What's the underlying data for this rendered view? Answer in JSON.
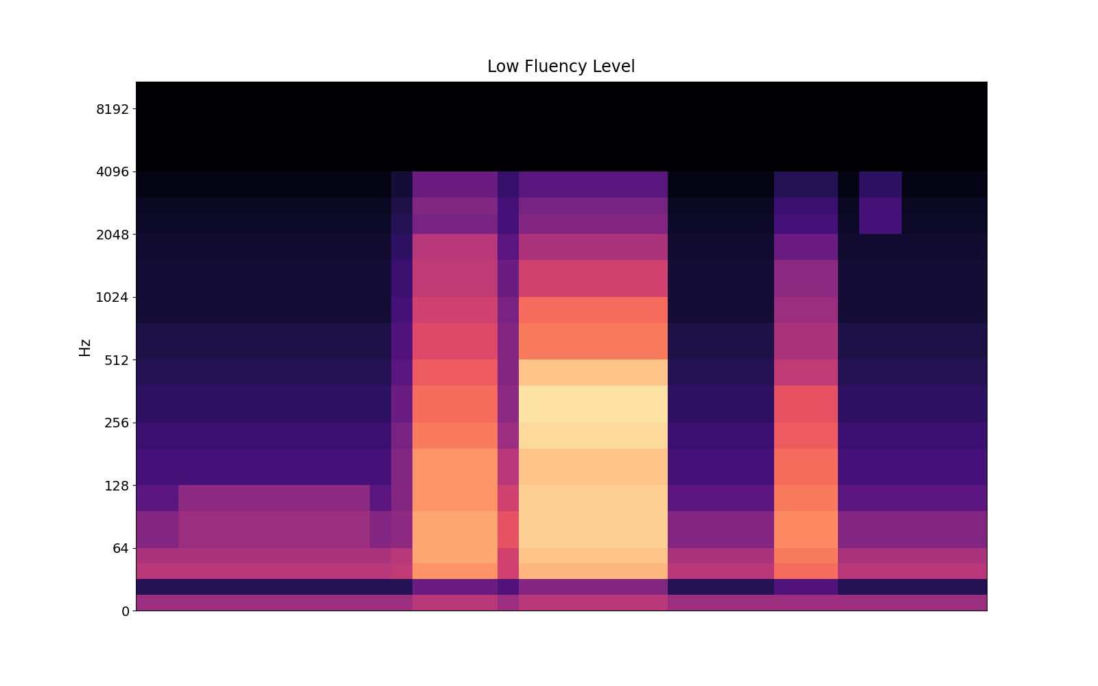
{
  "chart_data": {
    "type": "heatmap",
    "title": "Low Fluency Level",
    "y_label": "Hz",
    "log": "y",
    "tick_labels": "y",
    "ylim": [
      0,
      11025
    ],
    "yticks": [
      0,
      64,
      128,
      256,
      512,
      1024,
      2048,
      4096,
      8192
    ],
    "freq_edges": [
      0,
      16,
      32,
      48,
      64,
      96,
      128,
      192,
      256,
      384,
      512,
      768,
      1024,
      1536,
      2048,
      2560,
      3072,
      4096,
      6144,
      8192,
      11025
    ],
    "color_range": [
      -80,
      0
    ],
    "cells": [
      [
        -45,
        -45,
        -45,
        -45,
        -45,
        -45,
        -45,
        -45,
        -45,
        -45,
        -45,
        -45,
        -45,
        -40,
        -40,
        -40,
        -40,
        -45,
        -40,
        -40,
        -40,
        -40,
        -40,
        -40,
        -40,
        -45,
        -45,
        -45,
        -45,
        -45,
        -45,
        -45,
        -45,
        -45,
        -45,
        -45,
        -45,
        -45,
        -45,
        -45
      ],
      [
        -68,
        -68,
        -68,
        -68,
        -68,
        -68,
        -68,
        -68,
        -68,
        -68,
        -68,
        -68,
        -68,
        -55,
        -55,
        -55,
        -55,
        -60,
        -50,
        -50,
        -50,
        -50,
        -50,
        -50,
        -50,
        -68,
        -68,
        -68,
        -68,
        -68,
        -60,
        -60,
        -60,
        -68,
        -68,
        -68,
        -68,
        -68,
        -68,
        -68
      ],
      [
        -40,
        -40,
        -40,
        -40,
        -40,
        -40,
        -40,
        -40,
        -40,
        -40,
        -40,
        -40,
        -38,
        -18,
        -18,
        -18,
        -18,
        -35,
        -12,
        -12,
        -12,
        -12,
        -12,
        -12,
        -12,
        -40,
        -40,
        -40,
        -40,
        -40,
        -25,
        -25,
        -25,
        -40,
        -40,
        -40,
        -40,
        -40,
        -40,
        -40
      ],
      [
        -42,
        -42,
        -42,
        -42,
        -42,
        -42,
        -42,
        -42,
        -42,
        -42,
        -42,
        -42,
        -40,
        -15,
        -15,
        -15,
        -15,
        -35,
        -10,
        -10,
        -10,
        -10,
        -10,
        -10,
        -10,
        -42,
        -42,
        -42,
        -42,
        -42,
        -22,
        -22,
        -22,
        -42,
        -42,
        -42,
        -42,
        -42,
        -42,
        -42
      ],
      [
        -50,
        -50,
        -45,
        -45,
        -45,
        -45,
        -45,
        -45,
        -45,
        -45,
        -45,
        -50,
        -48,
        -15,
        -15,
        -15,
        -15,
        -30,
        -8,
        -8,
        -8,
        -8,
        -8,
        -8,
        -8,
        -50,
        -50,
        -50,
        -50,
        -50,
        -20,
        -20,
        -20,
        -50,
        -50,
        -50,
        -50,
        -50,
        -50,
        -50
      ],
      [
        -58,
        -58,
        -48,
        -48,
        -48,
        -48,
        -48,
        -48,
        -48,
        -48,
        -48,
        -58,
        -50,
        -18,
        -18,
        -18,
        -18,
        -35,
        -8,
        -8,
        -8,
        -8,
        -8,
        -8,
        -8,
        -58,
        -58,
        -58,
        -58,
        -58,
        -22,
        -22,
        -22,
        -58,
        -58,
        -58,
        -58,
        -58,
        -58,
        -58
      ],
      [
        -62,
        -62,
        -62,
        -62,
        -62,
        -62,
        -62,
        -62,
        -62,
        -62,
        -62,
        -62,
        -50,
        -18,
        -18,
        -18,
        -18,
        -40,
        -10,
        -10,
        -10,
        -10,
        -10,
        -10,
        -10,
        -62,
        -62,
        -62,
        -62,
        -62,
        -25,
        -25,
        -25,
        -62,
        -62,
        -62,
        -62,
        -62,
        -62,
        -62
      ],
      [
        -64,
        -64,
        -64,
        -64,
        -64,
        -64,
        -64,
        -64,
        -64,
        -64,
        -64,
        -64,
        -52,
        -22,
        -22,
        -22,
        -22,
        -45,
        -6,
        -6,
        -6,
        -6,
        -6,
        -6,
        -6,
        -64,
        -64,
        -64,
        -64,
        -64,
        -28,
        -28,
        -28,
        -64,
        -64,
        -64,
        -64,
        -64,
        -64,
        -64
      ],
      [
        -66,
        -66,
        -66,
        -66,
        -66,
        -66,
        -66,
        -66,
        -66,
        -66,
        -66,
        -66,
        -55,
        -25,
        -25,
        -25,
        -25,
        -48,
        -5,
        -5,
        -5,
        -5,
        -5,
        -5,
        -5,
        -66,
        -66,
        -66,
        -66,
        -66,
        -30,
        -30,
        -30,
        -66,
        -66,
        -66,
        -66,
        -66,
        -66,
        -66
      ],
      [
        -68,
        -68,
        -68,
        -68,
        -68,
        -68,
        -68,
        -68,
        -68,
        -68,
        -68,
        -68,
        -58,
        -28,
        -28,
        -28,
        -28,
        -50,
        -10,
        -10,
        -10,
        -10,
        -10,
        -10,
        -10,
        -68,
        -68,
        -68,
        -68,
        -68,
        -38,
        -38,
        -38,
        -68,
        -68,
        -68,
        -68,
        -68,
        -68,
        -68
      ],
      [
        -70,
        -70,
        -70,
        -70,
        -70,
        -70,
        -70,
        -70,
        -70,
        -70,
        -70,
        -70,
        -60,
        -32,
        -32,
        -32,
        -32,
        -50,
        -22,
        -22,
        -22,
        -22,
        -22,
        -22,
        -22,
        -70,
        -70,
        -70,
        -70,
        -70,
        -42,
        -42,
        -42,
        -70,
        -70,
        -70,
        -70,
        -70,
        -70,
        -70
      ],
      [
        -72,
        -72,
        -72,
        -72,
        -72,
        -72,
        -72,
        -72,
        -72,
        -72,
        -72,
        -72,
        -62,
        -35,
        -35,
        -35,
        -35,
        -52,
        -25,
        -25,
        -25,
        -25,
        -25,
        -25,
        -25,
        -72,
        -72,
        -72,
        -72,
        -72,
        -45,
        -45,
        -45,
        -72,
        -72,
        -72,
        -72,
        -72,
        -72,
        -72
      ],
      [
        -72,
        -72,
        -72,
        -72,
        -72,
        -72,
        -72,
        -72,
        -72,
        -72,
        -72,
        -72,
        -64,
        -38,
        -38,
        -38,
        -38,
        -55,
        -35,
        -35,
        -35,
        -35,
        -35,
        -35,
        -35,
        -72,
        -72,
        -72,
        -72,
        -72,
        -48,
        -48,
        -48,
        -72,
        -72,
        -72,
        -72,
        -72,
        -72,
        -72
      ],
      [
        -73,
        -73,
        -73,
        -73,
        -73,
        -73,
        -73,
        -73,
        -73,
        -73,
        -73,
        -73,
        -66,
        -40,
        -40,
        -40,
        -40,
        -58,
        -42,
        -42,
        -42,
        -42,
        -42,
        -42,
        -42,
        -73,
        -73,
        -73,
        -73,
        -73,
        -55,
        -55,
        -55,
        -73,
        -73,
        -73,
        -73,
        -73,
        -73,
        -73
      ],
      [
        -74,
        -74,
        -74,
        -74,
        -74,
        -74,
        -74,
        -74,
        -74,
        -74,
        -74,
        -74,
        -68,
        -52,
        -52,
        -52,
        -52,
        -62,
        -50,
        -50,
        -50,
        -50,
        -50,
        -50,
        -50,
        -74,
        -74,
        -74,
        -74,
        -74,
        -62,
        -62,
        -62,
        -74,
        -62,
        -62,
        -74,
        -74,
        -74,
        -74
      ],
      [
        -75,
        -75,
        -75,
        -75,
        -75,
        -75,
        -75,
        -75,
        -75,
        -75,
        -75,
        -75,
        -70,
        -50,
        -50,
        -50,
        -50,
        -62,
        -52,
        -52,
        -52,
        -52,
        -52,
        -52,
        -52,
        -75,
        -75,
        -75,
        -75,
        -75,
        -64,
        -64,
        -64,
        -75,
        -62,
        -62,
        -75,
        -75,
        -75,
        -75
      ],
      [
        -77,
        -77,
        -77,
        -77,
        -77,
        -77,
        -77,
        -77,
        -77,
        -77,
        -77,
        -77,
        -72,
        -55,
        -55,
        -55,
        -55,
        -65,
        -58,
        -58,
        -58,
        -58,
        -58,
        -58,
        -58,
        -77,
        -77,
        -77,
        -77,
        -77,
        -68,
        -68,
        -68,
        -77,
        -66,
        -66,
        -77,
        -77,
        -77,
        -77
      ],
      [
        -80,
        -80,
        -80,
        -80,
        -80,
        -80,
        -80,
        -80,
        -80,
        -80,
        -80,
        -80,
        -80,
        -80,
        -80,
        -80,
        -80,
        -80,
        -80,
        -80,
        -80,
        -80,
        -80,
        -80,
        -80,
        -80,
        -80,
        -80,
        -80,
        -80,
        -80,
        -80,
        -80,
        -80,
        -80,
        -80,
        -80,
        -80,
        -80,
        -80
      ],
      [
        -80,
        -80,
        -80,
        -80,
        -80,
        -80,
        -80,
        -80,
        -80,
        -80,
        -80,
        -80,
        -80,
        -80,
        -80,
        -80,
        -80,
        -80,
        -80,
        -80,
        -80,
        -80,
        -80,
        -80,
        -80,
        -80,
        -80,
        -80,
        -80,
        -80,
        -80,
        -80,
        -80,
        -80,
        -80,
        -80,
        -80,
        -80,
        -80,
        -80
      ],
      [
        -80,
        -80,
        -80,
        -80,
        -80,
        -80,
        -80,
        -80,
        -80,
        -80,
        -80,
        -80,
        -80,
        -80,
        -80,
        -80,
        -80,
        -80,
        -80,
        -80,
        -80,
        -80,
        -80,
        -80,
        -80,
        -80,
        -80,
        -80,
        -80,
        -80,
        -80,
        -80,
        -80,
        -80,
        -80,
        -80,
        -80,
        -80,
        -80,
        -80
      ]
    ]
  }
}
